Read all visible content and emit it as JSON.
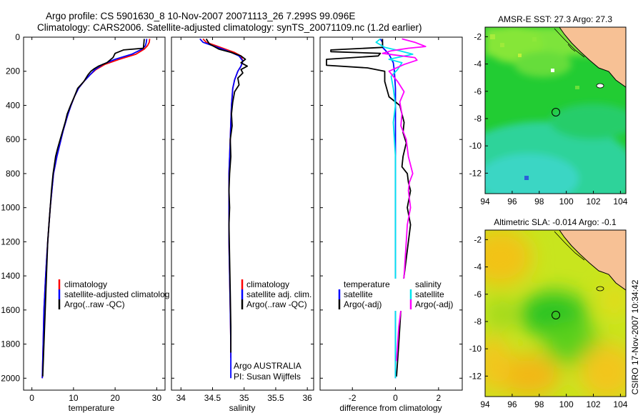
{
  "header": {
    "line1": "Argo profile: CS 5901630_8 10-Nov-2007 20071113_26 7.299S 99.096E",
    "line2": "Climatology: CARS2006. Satellite-adjusted climatology: synTS_20071109.nc (1.2d earlier)"
  },
  "stamp": "CSIRO 17-Nov-2007 10:34:42",
  "colors": {
    "red": "#ff0000",
    "blue": "#0000ff",
    "black": "#000000",
    "cyan": "#00e5ee",
    "magenta": "#ff00ff",
    "land": "#f7c195"
  },
  "chart_data": [
    {
      "type": "line",
      "id": "temperature",
      "xlabel": "temperature",
      "ylabel": "",
      "xlim": [
        -2,
        32
      ],
      "ylim": [
        2070,
        0
      ],
      "xticks": [
        0,
        10,
        20,
        30
      ],
      "xtick_labels": [
        "0",
        "10",
        "20",
        "30"
      ],
      "yticks": [
        0,
        200,
        400,
        600,
        800,
        1000,
        1200,
        1400,
        1600,
        1800,
        2000
      ],
      "ytick_labels": [
        "0",
        "200",
        "400",
        "600",
        "800",
        "1000",
        "1200",
        "1400",
        "1600",
        "1800",
        "2000"
      ],
      "legend": [
        "climatology",
        "satellite-adjusted climatolog",
        "Argo(..raw -QC)"
      ],
      "series": [
        {
          "name": "climatology",
          "color": "red",
          "x": [
            28.3,
            28.2,
            27.8,
            27.0,
            25.0,
            21.0,
            17.5,
            15.4,
            14.0,
            12.5,
            11.2,
            10.2,
            9.4,
            8.7,
            8.1,
            7.5,
            7.0,
            6.5,
            6.0,
            5.6,
            5.2,
            4.8,
            4.4,
            4.1,
            3.8,
            3.55,
            3.3,
            3.1,
            2.9,
            2.7,
            2.5
          ],
          "y": [
            10,
            30,
            50,
            70,
            100,
            130,
            160,
            190,
            220,
            260,
            300,
            350,
            400,
            450,
            500,
            550,
            600,
            650,
            700,
            750,
            800,
            900,
            1000,
            1100,
            1200,
            1300,
            1400,
            1500,
            1600,
            1800,
            2000
          ]
        },
        {
          "name": "satellite-adjusted climatolog",
          "color": "blue",
          "x": [
            27.6,
            27.5,
            27.3,
            26.5,
            24.0,
            20.0,
            17.0,
            15.2,
            14.0,
            12.5,
            11.2,
            10.2,
            9.4,
            8.7,
            8.1,
            7.5,
            7.0,
            6.5,
            6.0,
            5.6,
            5.2,
            4.8,
            4.4,
            4.1,
            3.8,
            3.55,
            3.3,
            3.1,
            2.9,
            2.7,
            2.5
          ],
          "y": [
            10,
            30,
            50,
            70,
            100,
            130,
            160,
            190,
            220,
            260,
            300,
            350,
            400,
            450,
            500,
            550,
            600,
            650,
            700,
            750,
            800,
            900,
            1000,
            1100,
            1200,
            1300,
            1400,
            1500,
            1600,
            1800,
            2000
          ]
        },
        {
          "name": "Argo(..raw -QC)",
          "color": "black",
          "x": [
            27.0,
            26.9,
            26.8,
            22.0,
            20.0,
            19.5,
            18.0,
            16.0,
            15.0,
            14.2,
            13.5,
            12.5,
            11.0,
            10.2,
            9.3,
            8.5,
            8.0,
            7.4,
            6.8,
            6.2,
            5.7,
            5.4,
            5.1,
            4.7,
            4.4,
            4.1,
            3.8,
            3.5,
            3.2,
            2.9,
            2.6
          ],
          "y": [
            10,
            40,
            65,
            75,
            95,
            120,
            150,
            170,
            185,
            200,
            220,
            260,
            300,
            350,
            400,
            450,
            500,
            550,
            600,
            650,
            700,
            750,
            800,
            900,
            1000,
            1100,
            1200,
            1400,
            1600,
            1800,
            1990
          ]
        }
      ]
    },
    {
      "type": "line",
      "id": "salinity",
      "xlabel": "salinity",
      "ylabel": "",
      "xlim": [
        33.85,
        36.1
      ],
      "ylim": [
        2070,
        0
      ],
      "xticks": [
        34,
        34.5,
        35,
        35.5,
        36
      ],
      "xtick_labels": [
        "34",
        "34.5",
        "35",
        "35.5",
        "36"
      ],
      "legend": [
        "climatology",
        "satellite adj. clim.",
        "Argo(..raw -QC)"
      ],
      "annotation": [
        "Argo AUSTRALIA",
        "PI: Susan Wijffels"
      ],
      "series": [
        {
          "name": "climatology",
          "color": "red",
          "x": [
            34.35,
            34.4,
            34.55,
            34.7,
            34.85,
            34.95,
            34.98,
            34.95,
            34.9,
            34.85,
            34.82,
            34.8,
            34.79,
            34.78,
            34.77,
            34.76,
            34.76,
            34.76,
            34.76,
            34.76,
            34.77,
            34.78,
            34.79,
            34.79
          ],
          "y": [
            10,
            30,
            50,
            70,
            90,
            110,
            140,
            170,
            200,
            250,
            300,
            400,
            500,
            600,
            700,
            800,
            900,
            1000,
            1100,
            1200,
            1400,
            1600,
            1800,
            1880
          ]
        },
        {
          "name": "satellite adj. clim.",
          "color": "blue",
          "x": [
            34.3,
            34.35,
            34.5,
            34.66,
            34.8,
            34.92,
            34.98,
            34.95,
            34.9,
            34.85,
            34.82,
            34.8,
            34.79,
            34.78,
            34.77,
            34.76,
            34.76,
            34.76,
            34.76,
            34.76,
            34.77,
            34.78,
            34.79,
            34.79
          ],
          "y": [
            10,
            30,
            50,
            70,
            90,
            110,
            140,
            170,
            200,
            250,
            300,
            400,
            500,
            600,
            700,
            800,
            900,
            1000,
            1100,
            1200,
            1400,
            1600,
            1800,
            2000
          ]
        },
        {
          "name": "Argo(..raw -QC)",
          "color": "black",
          "x": [
            34.4,
            34.45,
            34.6,
            34.8,
            34.95,
            35.02,
            34.95,
            35.05,
            34.95,
            34.98,
            34.9,
            34.92,
            34.85,
            34.82,
            34.8,
            34.81,
            34.78,
            34.79,
            34.77,
            34.76,
            34.77,
            34.76,
            34.77,
            34.78,
            34.79,
            34.79
          ],
          "y": [
            10,
            40,
            70,
            90,
            110,
            130,
            150,
            170,
            190,
            210,
            240,
            280,
            320,
            380,
            450,
            520,
            600,
            700,
            800,
            900,
            1000,
            1100,
            1300,
            1500,
            1700,
            1850
          ]
        }
      ]
    },
    {
      "type": "line",
      "id": "difference",
      "xlabel": "difference from climatology",
      "ylabel": "",
      "xlim": [
        -3.5,
        3.1
      ],
      "ylim": [
        2070,
        0
      ],
      "xticks": [
        -2,
        0,
        2
      ],
      "xtick_labels": [
        "-2",
        "0",
        "2"
      ],
      "legend_left": {
        "heading": "temperature",
        "items": [
          "satellite",
          "Argo(-adj)"
        ]
      },
      "legend_right": {
        "heading": "salinity",
        "items": [
          "satellite",
          "Argo(-adj)"
        ]
      },
      "series": [
        {
          "name": "temperature satellite",
          "color": "blue",
          "x": [
            -0.7,
            -0.6,
            -0.6,
            -0.3,
            -0.1,
            -0.05,
            0,
            0,
            0,
            0,
            0,
            0,
            0,
            0,
            0
          ],
          "y": [
            10,
            30,
            60,
            100,
            150,
            200,
            300,
            500,
            700,
            900,
            1100,
            1300,
            1500,
            1700,
            2000
          ]
        },
        {
          "name": "temperature Argo(-adj)",
          "color": "black",
          "x": [
            -0.6,
            -0.6,
            -3.0,
            -3.0,
            -0.7,
            -0.8,
            -3.2,
            -3.2,
            -1.3,
            -0.5,
            -0.5,
            -0.3,
            0.2,
            0.4,
            0.35,
            0.5,
            0.35,
            0.3,
            0.55,
            0.6,
            0.7,
            0.55,
            0.7,
            0.6,
            0.5,
            0.4,
            0.3,
            0.25,
            0.2,
            0.15,
            0.1,
            0.05
          ],
          "y": [
            10,
            60,
            75,
            85,
            95,
            110,
            130,
            165,
            180,
            200,
            260,
            350,
            400,
            500,
            560,
            620,
            700,
            760,
            800,
            850,
            900,
            1000,
            1100,
            1200,
            1300,
            1400,
            1500,
            1600,
            1700,
            1800,
            1900,
            1990
          ]
        },
        {
          "name": "salinity satellite",
          "color": "cyan",
          "x": [
            -0.7,
            -0.9,
            -0.5,
            0.2,
            0.8,
            -0.3,
            0.3,
            0.1,
            -0.2,
            -0.1,
            0,
            -0.1,
            0,
            0,
            0,
            0,
            0,
            0
          ],
          "y": [
            10,
            30,
            60,
            80,
            100,
            130,
            150,
            190,
            230,
            300,
            400,
            500,
            700,
            900,
            1200,
            1500,
            1800,
            2000
          ]
        },
        {
          "name": "salinity Argo(-adj)",
          "color": "magenta",
          "x": [
            0.3,
            0.9,
            1.4,
            0.6,
            -0.2,
            -0.6,
            0.9,
            1.0,
            0.4,
            -0.3,
            0.1,
            0.4,
            0.2,
            0.3,
            0.25,
            0.5,
            0.6,
            0.8,
            0.65,
            0.6,
            0.7,
            0.55,
            0.5,
            0.45,
            0.4,
            0.3,
            0.25,
            0.15,
            0.1,
            0.05
          ],
          "y": [
            10,
            30,
            55,
            65,
            80,
            95,
            120,
            135,
            160,
            200,
            260,
            320,
            380,
            450,
            520,
            600,
            700,
            800,
            850,
            900,
            1000,
            1100,
            1200,
            1300,
            1400,
            1500,
            1600,
            1700,
            1800,
            1900
          ]
        }
      ]
    },
    {
      "type": "heatmap",
      "id": "sst-map",
      "title": "AMSR-E SST: 27.3 Argo: 27.3",
      "xlim": [
        94,
        104.4
      ],
      "ylim": [
        -13.5,
        -1.3
      ],
      "xticks": [
        94,
        96,
        98,
        100,
        102,
        104
      ],
      "xtick_labels": [
        "94",
        "96",
        "98",
        "100",
        "102",
        "104"
      ],
      "yticks": [
        -2,
        -4,
        -6,
        -8,
        -10,
        -12
      ],
      "ytick_labels": [
        "-2",
        "-4",
        "-6",
        "-8",
        "-10",
        "-12"
      ],
      "float_position": [
        99.1,
        -7.3
      ]
    },
    {
      "type": "heatmap",
      "id": "sla-map",
      "title": "Altimetric SLA: -0.014 Argo: -0.1",
      "xlim": [
        94,
        104.4
      ],
      "ylim": [
        -13.5,
        -1.3
      ],
      "xticks": [
        94,
        96,
        98,
        100,
        102,
        104
      ],
      "xtick_labels": [
        "94",
        "96",
        "98",
        "100",
        "102",
        "104"
      ],
      "yticks": [
        -2,
        -4,
        -6,
        -8,
        -10,
        -12
      ],
      "ytick_labels": [
        "-2",
        "-4",
        "-6",
        "-8",
        "-10",
        "-12"
      ],
      "float_position": [
        99.1,
        -7.3
      ]
    }
  ]
}
